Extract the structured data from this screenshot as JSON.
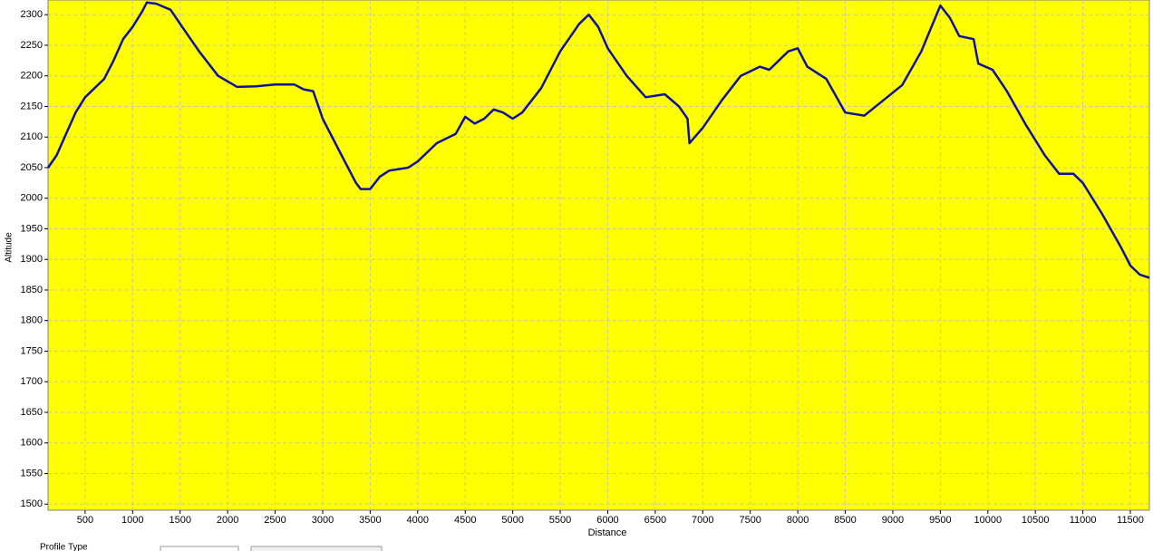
{
  "chart_data": {
    "type": "line",
    "x_label": "Distance",
    "y_label": "Altitude",
    "x": [
      110,
      200,
      300,
      400,
      500,
      600,
      700,
      800,
      900,
      1000,
      1100,
      1150,
      1250,
      1400,
      1500,
      1700,
      1900,
      2100,
      2300,
      2500,
      2700,
      2800,
      2900,
      3000,
      3200,
      3350,
      3400,
      3500,
      3600,
      3700,
      3900,
      4000,
      4200,
      4400,
      4500,
      4600,
      4700,
      4800,
      4900,
      5000,
      5100,
      5300,
      5500,
      5700,
      5800,
      5900,
      6000,
      6200,
      6400,
      6600,
      6750,
      6840,
      6860,
      7000,
      7200,
      7400,
      7600,
      7700,
      7900,
      8000,
      8100,
      8300,
      8500,
      8700,
      8900,
      9100,
      9300,
      9500,
      9600,
      9700,
      9850,
      9900,
      10050,
      10200,
      10400,
      10600,
      10750,
      10900,
      11000,
      11200,
      11400,
      11500,
      11600,
      11700
    ],
    "values": [
      2050,
      2070,
      2105,
      2140,
      2165,
      2180,
      2195,
      2225,
      2260,
      2280,
      2305,
      2320,
      2318,
      2308,
      2285,
      2240,
      2200,
      2182,
      2183,
      2186,
      2186,
      2178,
      2175,
      2130,
      2070,
      2025,
      2015,
      2015,
      2035,
      2045,
      2050,
      2060,
      2090,
      2105,
      2133,
      2122,
      2130,
      2145,
      2140,
      2130,
      2140,
      2180,
      2240,
      2285,
      2300,
      2280,
      2245,
      2200,
      2165,
      2170,
      2150,
      2130,
      2090,
      2115,
      2160,
      2200,
      2215,
      2210,
      2240,
      2245,
      2215,
      2195,
      2140,
      2135,
      2160,
      2185,
      2240,
      2315,
      2295,
      2265,
      2260,
      2220,
      2210,
      2175,
      2120,
      2070,
      2040,
      2040,
      2025,
      1975,
      1920,
      1890,
      1875,
      1870
    ],
    "color": "#10109a",
    "background": "#ffff00",
    "grid": true,
    "xlim": [
      110,
      11700
    ],
    "ylim": [
      1490,
      2324
    ],
    "xticks": [
      500,
      1000,
      1500,
      2000,
      2500,
      3000,
      3500,
      4000,
      4500,
      5000,
      5500,
      6000,
      6500,
      7000,
      7500,
      8000,
      8500,
      9000,
      9500,
      10000,
      10500,
      11000,
      11500
    ],
    "yticks": [
      1500,
      1550,
      1600,
      1650,
      1700,
      1750,
      1800,
      1850,
      1900,
      1950,
      2000,
      2050,
      2100,
      2150,
      2200,
      2250,
      2300
    ]
  },
  "controls": {
    "profile_type_label": "Profile Type"
  }
}
